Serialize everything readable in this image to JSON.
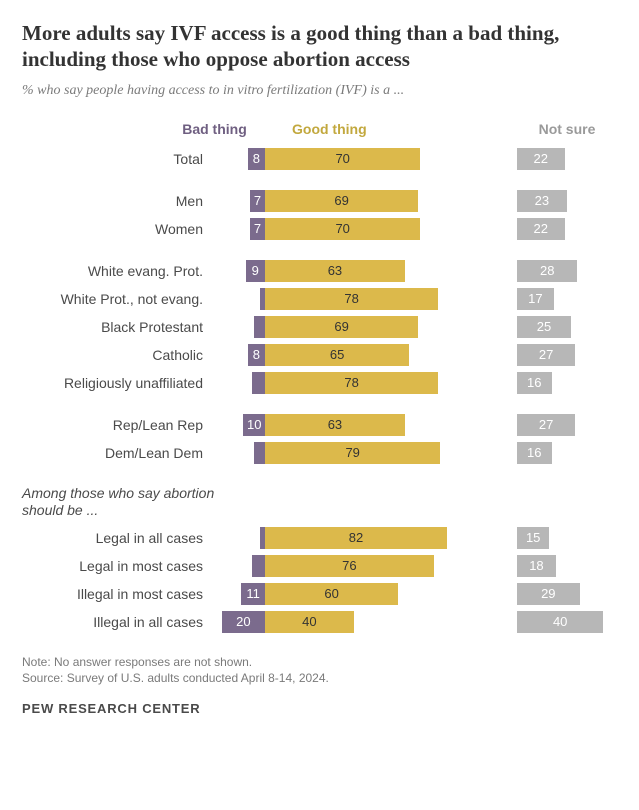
{
  "title": "More adults say IVF access is a good thing than a bad thing, including those who oppose abortion access",
  "subtitle": "% who say people having access to in vitro fertilization (IVF) is a ...",
  "legend": {
    "bad": "Bad thing",
    "good": "Good thing",
    "notsure": "Not sure"
  },
  "colors": {
    "bad": "#7b6b8d",
    "good": "#dcb94b",
    "notsure": "#b7b7b7"
  },
  "scale": {
    "good_max": 100,
    "bad_max": 25,
    "notsure_max": 50
  },
  "groups": [
    {
      "rows": [
        {
          "label": "Total",
          "bad": 8,
          "good": 70,
          "notsure": 22
        }
      ]
    },
    {
      "rows": [
        {
          "label": "Men",
          "bad": 7,
          "good": 69,
          "notsure": 23
        },
        {
          "label": "Women",
          "bad": 7,
          "good": 70,
          "notsure": 22
        }
      ]
    },
    {
      "rows": [
        {
          "label": "White evang. Prot.",
          "bad": 9,
          "good": 63,
          "notsure": 28
        },
        {
          "label": "White Prot., not evang.",
          "bad": null,
          "good": 78,
          "notsure": 17,
          "bad_sliver": true
        },
        {
          "label": "Black Protestant",
          "bad": 5,
          "good": 69,
          "notsure": 25
        },
        {
          "label": "Catholic",
          "bad": 8,
          "good": 65,
          "notsure": 27
        },
        {
          "label": "Religiously unaffiliated",
          "bad": 6,
          "good": 78,
          "notsure": 16
        }
      ]
    },
    {
      "rows": [
        {
          "label": "Rep/Lean Rep",
          "bad": 10,
          "good": 63,
          "notsure": 27
        },
        {
          "label": "Dem/Lean Dem",
          "bad": 5,
          "good": 79,
          "notsure": 16
        }
      ]
    },
    {
      "heading": "Among those who say abortion should be ...",
      "rows": [
        {
          "label": "Legal in all cases",
          "bad": null,
          "good": 82,
          "notsure": 15,
          "bad_sliver": true
        },
        {
          "label": "Legal in most cases",
          "bad": 6,
          "good": 76,
          "notsure": 18
        },
        {
          "label": "Illegal in most cases",
          "bad": 11,
          "good": 60,
          "notsure": 29
        },
        {
          "label": "Illegal in all cases",
          "bad": 20,
          "good": 40,
          "notsure": 40
        }
      ]
    }
  ],
  "note1": "Note: No answer responses are not shown.",
  "note2": "Source: Survey of U.S. adults conducted April 8-14, 2024.",
  "brand": "PEW RESEARCH CENTER"
}
